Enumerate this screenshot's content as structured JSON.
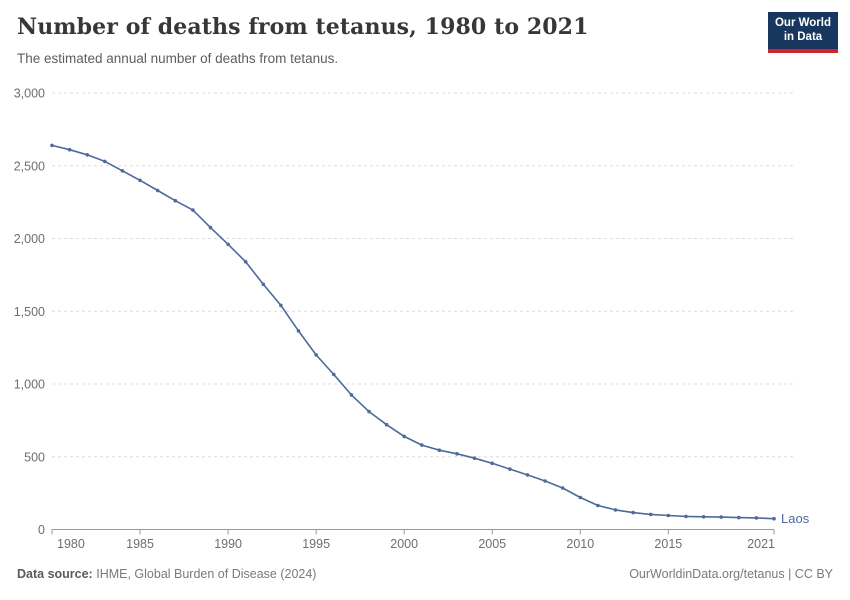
{
  "header": {
    "title": "Number of deaths from tetanus, 1980 to 2021",
    "subtitle": "The estimated annual number of deaths from tetanus.",
    "logo": {
      "line1": "Our World",
      "line2": "in Data"
    }
  },
  "footer": {
    "source_label": "Data source:",
    "source_value": "IHME, Global Burden of Disease (2024)",
    "credit": "OurWorldinData.org/tetanus | CC BY"
  },
  "colors": {
    "line": "#4c6a9c",
    "entity_label": "#4c6a9c",
    "grid": "#dcdcdc",
    "axis": "#999999",
    "tick_label": "#6e6e6e",
    "logo_bg": "#17375e",
    "logo_red": "#d0232e",
    "title": "#383636"
  },
  "chart_data": {
    "type": "line",
    "title": "Number of deaths from tetanus, 1980 to 2021",
    "subtitle": "The estimated annual number of deaths from tetanus.",
    "entity_label": "Laos",
    "xlabel": "",
    "ylabel": "",
    "xlim": [
      1980,
      2021
    ],
    "ylim": [
      0,
      3000
    ],
    "grid": "horizontal-dashed",
    "legend_position": "end-of-line",
    "x": [
      1980,
      1981,
      1982,
      1983,
      1984,
      1985,
      1986,
      1987,
      1988,
      1989,
      1990,
      1991,
      1992,
      1993,
      1994,
      1995,
      1996,
      1997,
      1998,
      1999,
      2000,
      2001,
      2002,
      2003,
      2004,
      2005,
      2006,
      2007,
      2008,
      2009,
      2010,
      2011,
      2012,
      2013,
      2014,
      2015,
      2016,
      2017,
      2018,
      2019,
      2020,
      2021
    ],
    "series": [
      {
        "name": "Laos",
        "values": [
          2640,
          2610,
          2575,
          2530,
          2465,
          2400,
          2330,
          2260,
          2195,
          2075,
          1960,
          1840,
          1685,
          1540,
          1365,
          1200,
          1065,
          925,
          810,
          720,
          640,
          580,
          545,
          520,
          490,
          455,
          415,
          375,
          333,
          285,
          220,
          165,
          135,
          116,
          104,
          96,
          90,
          87,
          85,
          82,
          80,
          74
        ]
      }
    ],
    "x_ticks": [
      1980,
      1985,
      1990,
      1995,
      2000,
      2005,
      2010,
      2015,
      2021
    ],
    "x_tick_labels": [
      "1980",
      "1985",
      "1990",
      "1995",
      "2000",
      "2005",
      "2010",
      "2015",
      "2021"
    ],
    "y_ticks": [
      0,
      500,
      1000,
      1500,
      2000,
      2500,
      3000
    ],
    "y_tick_labels": [
      "0",
      "500",
      "1,000",
      "1,500",
      "2,000",
      "2,500",
      "3,000"
    ]
  }
}
